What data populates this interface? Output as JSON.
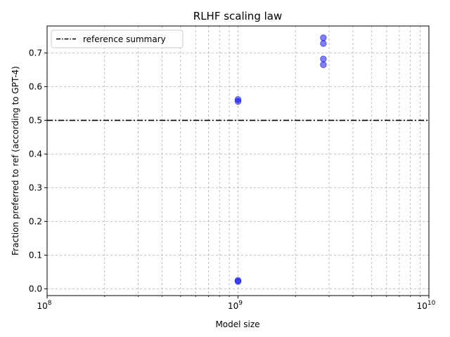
{
  "chart_data": {
    "type": "scatter",
    "title": "RLHF scaling law",
    "xlabel": "Model size",
    "ylabel": "Fraction preferred to ref (according to GPT-4)",
    "xscale": "log",
    "xlim": [
      100000000,
      10000000000
    ],
    "ylim": [
      -0.02,
      0.78
    ],
    "x_ticks": [
      {
        "value": 100000000,
        "base": "10",
        "exp": "8"
      },
      {
        "value": 1000000000,
        "base": "10",
        "exp": "9"
      },
      {
        "value": 10000000000,
        "base": "10",
        "exp": "10"
      }
    ],
    "y_ticks": [
      {
        "value": 0.0,
        "label": "0.0"
      },
      {
        "value": 0.1,
        "label": "0.1"
      },
      {
        "value": 0.2,
        "label": "0.2"
      },
      {
        "value": 0.3,
        "label": "0.3"
      },
      {
        "value": 0.4,
        "label": "0.4"
      },
      {
        "value": 0.5,
        "label": "0.5"
      },
      {
        "value": 0.6,
        "label": "0.6"
      },
      {
        "value": 0.7,
        "label": "0.7"
      }
    ],
    "grid": true,
    "grid_minor": true,
    "legend_position": "top-left",
    "reference_line": {
      "label": "reference summary",
      "y": 0.5,
      "color": "#000000",
      "style": "dash-dot"
    },
    "series": [
      {
        "color": "#0000ff",
        "points": [
          {
            "x": 1000000000,
            "y": 0.562
          },
          {
            "x": 1000000000,
            "y": 0.556
          },
          {
            "x": 1000000000,
            "y": 0.025
          },
          {
            "x": 1000000000,
            "y": 0.022
          },
          {
            "x": 2800000000,
            "y": 0.745
          },
          {
            "x": 2800000000,
            "y": 0.728
          },
          {
            "x": 2800000000,
            "y": 0.682
          },
          {
            "x": 2800000000,
            "y": 0.665
          }
        ]
      }
    ]
  }
}
